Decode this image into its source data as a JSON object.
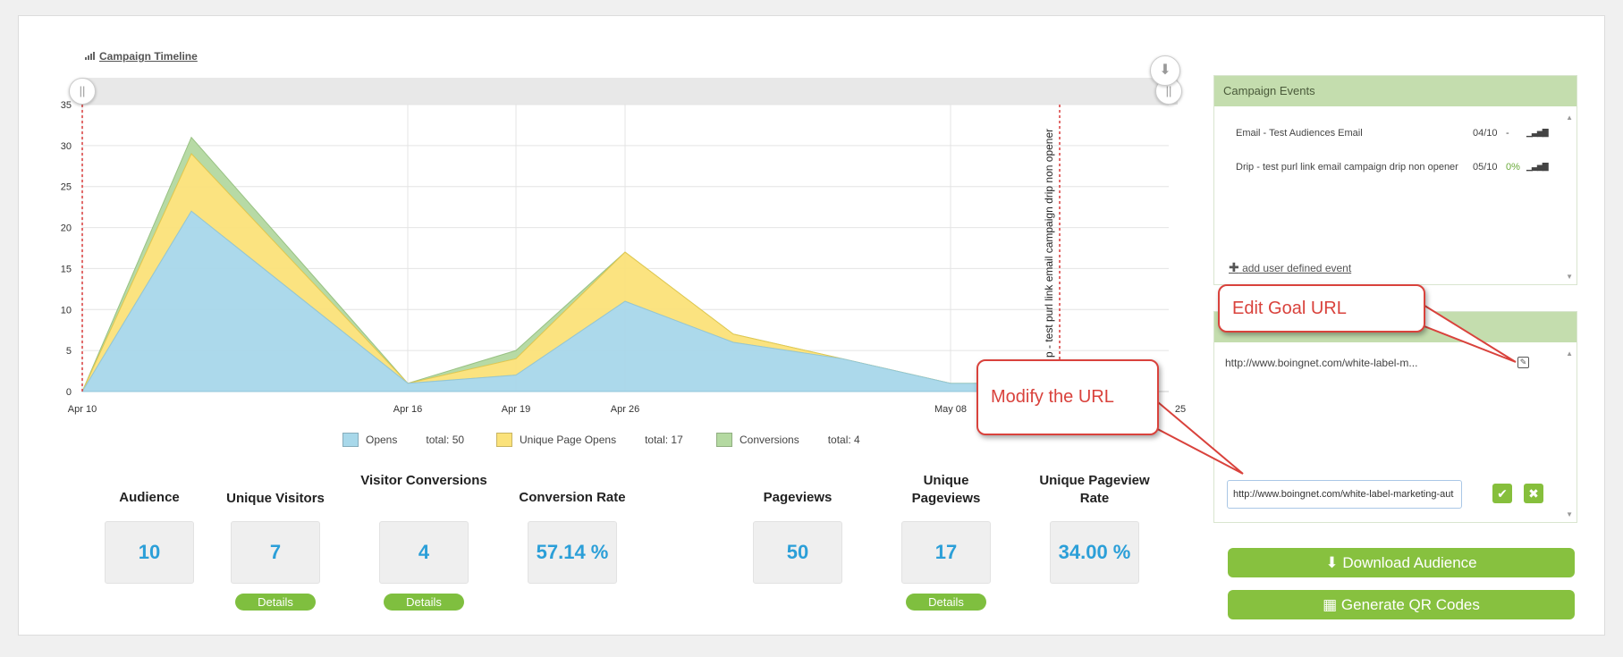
{
  "chart_title": "Campaign Timeline",
  "colors": {
    "opens": "#a8d8ea",
    "unique_page_opens": "#fbe27a",
    "conversions": "#b4d9a1",
    "accent": "#2b9fd8",
    "green": "#87c13f",
    "callout": "#d9423c"
  },
  "chart_data": {
    "type": "area",
    "stacked": true,
    "x": [
      "Apr 10",
      "Apr 13",
      "Apr 16",
      "Apr 19",
      "Apr 26",
      "Apr 29",
      "May 02",
      "May 08",
      "May 10"
    ],
    "x_tick_labels": [
      "Apr 10",
      "Apr 16",
      "Apr 19",
      "Apr 26",
      "May 08",
      "25"
    ],
    "ylim": [
      0,
      35
    ],
    "y_ticks": [
      0,
      5,
      10,
      15,
      20,
      25,
      30,
      35
    ],
    "series": [
      {
        "name": "Opens",
        "values": [
          0,
          22,
          1,
          2,
          11,
          6,
          4,
          1,
          1
        ]
      },
      {
        "name": "Unique Page Opens",
        "values": [
          0,
          7,
          0,
          2,
          6,
          1,
          0,
          0,
          0
        ]
      },
      {
        "name": "Conversions",
        "values": [
          0,
          2,
          0,
          1,
          0,
          0,
          0,
          0,
          0
        ]
      }
    ],
    "event_markers": [
      {
        "x": "Apr 10",
        "label": ""
      },
      {
        "x": "May 10",
        "label": "p - test purl link email campaign drip non opener"
      }
    ],
    "legend": [
      {
        "label": "Opens",
        "total": "total: 50"
      },
      {
        "label": "Unique Page Opens",
        "total": "total: 17"
      },
      {
        "label": "Conversions",
        "total": "total: 4"
      }
    ]
  },
  "stats": [
    {
      "label": "Audience",
      "value": "10",
      "details": ""
    },
    {
      "label": "Unique Visitors",
      "value": "7",
      "details": "Details"
    },
    {
      "label": "Visitor Conversions",
      "value": "4",
      "details": "Details"
    },
    {
      "label": "Conversion Rate",
      "value": "57.14 %",
      "details": ""
    },
    {
      "label": "Pageviews",
      "value": "50",
      "details": ""
    },
    {
      "label": "Unique Pageviews",
      "value": "17",
      "details": "Details"
    },
    {
      "label": "Unique Pageview Rate",
      "value": "34.00 %",
      "details": ""
    }
  ],
  "campaign_events": {
    "title": "Campaign Events",
    "events": [
      {
        "name": "Email - Test Audiences Email",
        "date": "04/10",
        "rate": "-"
      },
      {
        "name": "Drip - test purl link email campaign drip non opener",
        "date": "05/10",
        "rate": "0%"
      }
    ],
    "add_label": "add user defined event"
  },
  "goal": {
    "url_display": "http://www.boingnet.com/white-label-m...",
    "input_value": "http://www.boingnet.com/white-label-marketing-aut"
  },
  "callouts": {
    "edit_goal": "Edit Goal URL",
    "modify_url": "Modify the URL"
  },
  "buttons": {
    "download": "Download Audience",
    "qr": "Generate QR Codes"
  }
}
